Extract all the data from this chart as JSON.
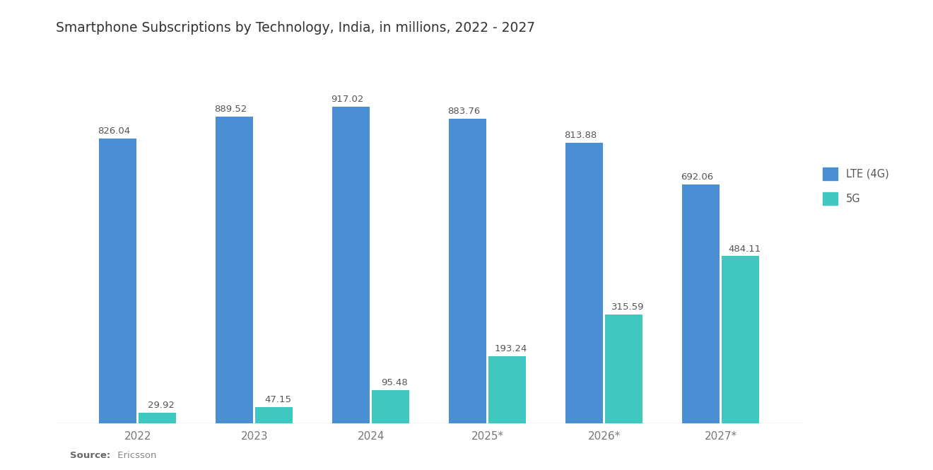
{
  "title": "Smartphone Subscriptions by Technology, India, in millions, 2022 - 2027",
  "categories": [
    "2022",
    "2023",
    "2024",
    "2025*",
    "2026*",
    "2027*"
  ],
  "lte_values": [
    826.04,
    889.52,
    917.02,
    883.76,
    813.88,
    692.06
  ],
  "fg5_values": [
    29.92,
    47.15,
    95.48,
    193.24,
    315.59,
    484.11
  ],
  "lte_color": "#4A8FD4",
  "fg5_color": "#3EC8C0",
  "background_color": "#FFFFFF",
  "plot_bg_color": "#FFFFFF",
  "title_fontsize": 13.5,
  "bar_width": 0.32,
  "legend_labels": [
    "LTE (4G)",
    "5G"
  ],
  "ylim": [
    0,
    1050
  ],
  "source_bold": "Source:",
  "source_normal": " Ericsson"
}
